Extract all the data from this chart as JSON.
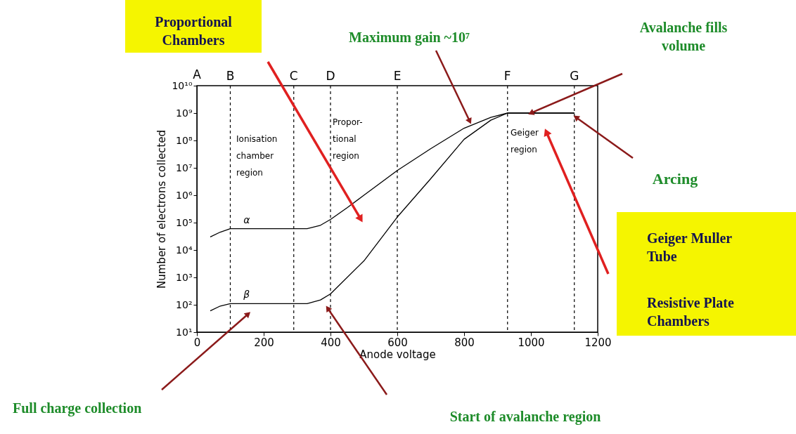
{
  "chart_data": {
    "type": "line",
    "xlabel": "Anode voltage",
    "ylabel": "Number of electrons collected",
    "series": [
      {
        "name": "α",
        "color": "#000000",
        "x": [
          40,
          70,
          100,
          170,
          330,
          370,
          400,
          450,
          500,
          600,
          700,
          800,
          880,
          930,
          1130
        ],
        "values": [
          30000,
          45000,
          60000,
          60000,
          60000,
          80000,
          130000,
          350000,
          1000000,
          8000000,
          50000000,
          280000000,
          700000000,
          1000000000,
          1000000000
        ]
      },
      {
        "name": "β",
        "color": "#000000",
        "x": [
          40,
          70,
          100,
          170,
          330,
          370,
          400,
          500,
          600,
          700,
          800,
          850,
          880,
          930,
          1130
        ],
        "values": [
          60,
          90,
          110,
          110,
          110,
          150,
          250,
          4000,
          160000,
          4000000,
          110000000,
          300000000,
          550000000,
          1000000000,
          1000000000
        ]
      }
    ],
    "xlim": [
      0,
      1200
    ],
    "xticks": [
      0,
      200,
      400,
      600,
      800,
      1000,
      1200
    ],
    "ylim": [
      10,
      10000000000
    ],
    "log": true,
    "yticks": [
      {
        "value": 10,
        "label": "10¹"
      },
      {
        "value": 100,
        "label": "10²"
      },
      {
        "value": 1000,
        "label": "10³"
      },
      {
        "value": 10000,
        "label": "10⁴"
      },
      {
        "value": 100000,
        "label": "10⁵"
      },
      {
        "value": 1000000,
        "label": "10⁶"
      },
      {
        "value": 10000000,
        "label": "10⁷"
      },
      {
        "value": 100000000,
        "label": "10⁸"
      },
      {
        "value": 1000000000,
        "label": "10⁹"
      },
      {
        "value": 10000000000,
        "label": "10¹⁰"
      }
    ],
    "ref_lines": [
      {
        "axis": "x",
        "value": 100,
        "label": "B",
        "color": "#000000",
        "line_style": "dashed"
      },
      {
        "axis": "x",
        "value": 290,
        "label": "C",
        "color": "#000000",
        "line_style": "dashed"
      },
      {
        "axis": "x",
        "value": 400,
        "label": "D",
        "color": "#000000",
        "line_style": "dashed"
      },
      {
        "axis": "x",
        "value": 600,
        "label": "E",
        "color": "#000000",
        "line_style": "dashed"
      },
      {
        "axis": "x",
        "value": 930,
        "label": "F",
        "color": "#000000",
        "line_style": "dashed"
      },
      {
        "axis": "x",
        "value": 1130,
        "label": "G",
        "color": "#000000",
        "line_style": "dashed"
      }
    ],
    "annotations": [
      "Proportional\nChambers",
      {
        "text": "Maximum gain ~10⁷",
        "x": 817,
        "y": 500000000
      },
      "Avalanche fills\nvolume",
      "Arcing",
      "Geiger Muller\nTube",
      "Resistive Plate\nChambers",
      "Full charge collection",
      "Start of avalanche region",
      "Ionisation\nchamber\nregion",
      "Propor-\ntional\nregion",
      "Geiger\nregion",
      "A"
    ],
    "grid": false,
    "legend": false,
    "marker": "none",
    "line_style": "solid"
  }
}
